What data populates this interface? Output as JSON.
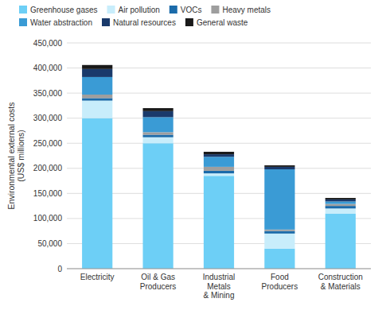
{
  "chart_data": {
    "type": "bar",
    "stacked": true,
    "grid": true,
    "legend": "top",
    "categories": [
      "Electricity",
      "Oil & Gas\nProducers",
      "Industrial\nMetals\n& Mining",
      "Food\nProducers",
      "Construction\n& Materials"
    ],
    "series": [
      {
        "name": "Greenhouse gases",
        "color": "#6DCFF6",
        "values": [
          300000,
          250000,
          185000,
          40000,
          110000
        ]
      },
      {
        "name": "Air pollution",
        "color": "#C8EDFB",
        "values": [
          35000,
          12000,
          5000,
          30000,
          10000
        ]
      },
      {
        "name": "VOCs",
        "color": "#1B6BAA",
        "values": [
          5000,
          5000,
          5000,
          5000,
          5000
        ]
      },
      {
        "name": "Heavy metals",
        "color": "#9E9E9E",
        "values": [
          7000,
          5000,
          8000,
          3000,
          4000
        ]
      },
      {
        "name": "Water abstraction",
        "color": "#3A9BD5",
        "values": [
          35000,
          30000,
          20000,
          120000,
          5000
        ]
      },
      {
        "name": "Natural resources",
        "color": "#1A3A6B",
        "values": [
          16000,
          12000,
          5000,
          5000,
          4000
        ]
      },
      {
        "name": "General waste",
        "color": "#1A1A1A",
        "values": [
          8000,
          6000,
          5000,
          3000,
          3000
        ]
      }
    ],
    "y_label": "Environmental external costs\n(US$ millions)",
    "ylim": [
      0,
      450000
    ],
    "yticks": [
      0,
      {
        "value": 50000,
        "label": "50,000"
      },
      {
        "value": 100000,
        "label": "100,000"
      },
      {
        "value": 150000,
        "label": "150,000"
      },
      {
        "value": 200000,
        "label": "200,000"
      },
      {
        "value": 250000,
        "label": "250,000"
      },
      {
        "value": 300000,
        "label": "300,000"
      },
      {
        "value": 350000,
        "label": "350,000"
      },
      {
        "value": 400000,
        "label": "400,000"
      },
      {
        "value": 450000,
        "label": "450,000"
      }
    ]
  }
}
